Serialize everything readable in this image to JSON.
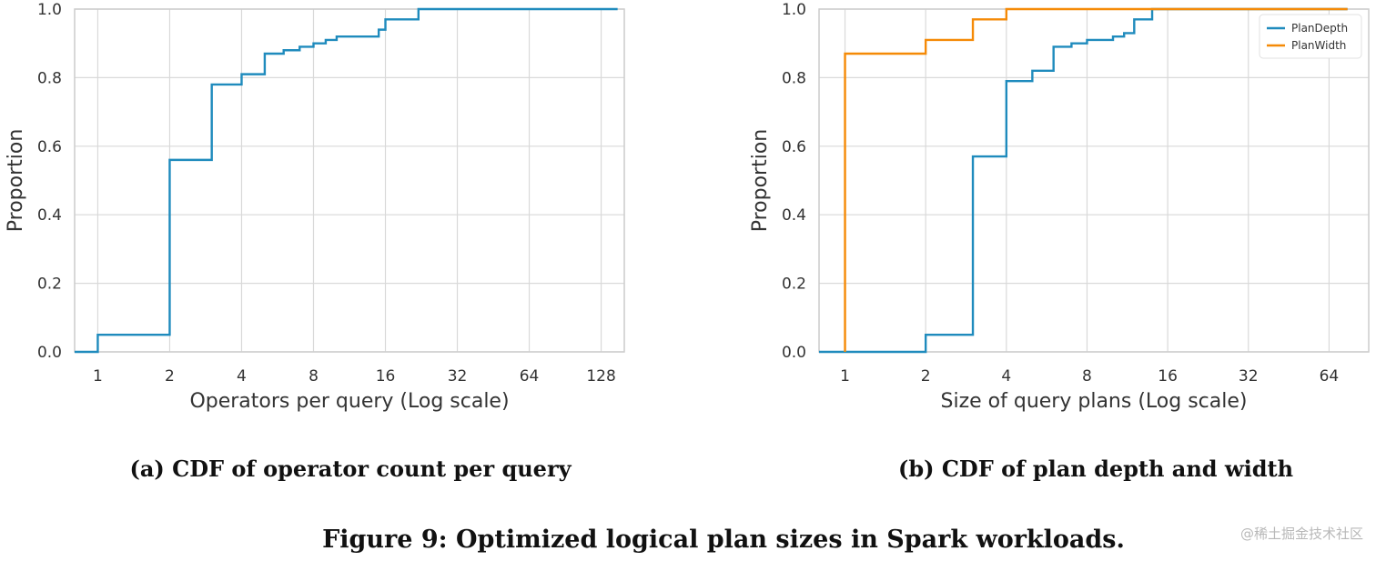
{
  "figure_caption": "Figure 9: Optimized logical plan sizes in Spark workloads.",
  "watermark": "@稀土掘金技术社区",
  "colors": {
    "blue": "#1f8bbd",
    "orange": "#f58a07",
    "grid": "#d9d9d9",
    "frame": "#cccccc",
    "text": "#333333"
  },
  "chart_data": [
    {
      "type": "line",
      "subtype": "ecdf-step",
      "caption": "(a) CDF of operator count per query",
      "title": "",
      "xlabel": "Operators per query (Log scale)",
      "ylabel": "Proportion",
      "xscale": "log2",
      "xlim": [
        0.8,
        160
      ],
      "ylim": [
        0,
        1
      ],
      "xticks": [
        1,
        2,
        4,
        8,
        16,
        32,
        64,
        128
      ],
      "xtick_labels": [
        "1",
        "2",
        "4",
        "8",
        "16",
        "32",
        "64",
        "128"
      ],
      "yticks": [
        0,
        0.2,
        0.4,
        0.6,
        0.8,
        1.0
      ],
      "ytick_labels": [
        "0.0",
        "0.2",
        "0.4",
        "0.6",
        "0.8",
        "1.0"
      ],
      "grid": true,
      "legend": null,
      "series": [
        {
          "name": "",
          "color": "#1f8bbd",
          "points": [
            [
              0.8,
              0
            ],
            [
              1,
              0.05
            ],
            [
              2,
              0.56
            ],
            [
              3,
              0.78
            ],
            [
              4,
              0.81
            ],
            [
              5,
              0.87
            ],
            [
              6,
              0.88
            ],
            [
              7,
              0.89
            ],
            [
              8,
              0.9
            ],
            [
              9,
              0.91
            ],
            [
              10,
              0.92
            ],
            [
              15,
              0.94
            ],
            [
              16,
              0.97
            ],
            [
              22,
              1.0
            ],
            [
              150,
              1.0
            ]
          ]
        }
      ]
    },
    {
      "type": "line",
      "subtype": "ecdf-step",
      "caption": "(b) CDF of plan depth and width",
      "title": "",
      "xlabel": "Size of query plans (Log scale)",
      "ylabel": "Proportion",
      "xscale": "log2",
      "xlim": [
        0.8,
        90
      ],
      "ylim": [
        0,
        1
      ],
      "xticks": [
        1,
        2,
        4,
        8,
        16,
        32,
        64
      ],
      "xtick_labels": [
        "1",
        "2",
        "4",
        "8",
        "16",
        "32",
        "64"
      ],
      "yticks": [
        0,
        0.2,
        0.4,
        0.6,
        0.8,
        1.0
      ],
      "ytick_labels": [
        "0.0",
        "0.2",
        "0.4",
        "0.6",
        "0.8",
        "1.0"
      ],
      "grid": true,
      "legend": "top-right",
      "series": [
        {
          "name": "PlanDepth",
          "color": "#1f8bbd",
          "points": [
            [
              0.8,
              0
            ],
            [
              2,
              0.05
            ],
            [
              3,
              0.57
            ],
            [
              4,
              0.79
            ],
            [
              5,
              0.82
            ],
            [
              6,
              0.89
            ],
            [
              7,
              0.9
            ],
            [
              8,
              0.91
            ],
            [
              10,
              0.92
            ],
            [
              11,
              0.93
            ],
            [
              12,
              0.97
            ],
            [
              14,
              1.0
            ],
            [
              75,
              1.0
            ]
          ]
        },
        {
          "name": "PlanWidth",
          "color": "#f58a07",
          "points": [
            [
              1,
              0
            ],
            [
              1,
              0.87
            ],
            [
              2,
              0.91
            ],
            [
              3,
              0.97
            ],
            [
              4,
              1.0
            ],
            [
              75,
              1.0
            ]
          ]
        }
      ]
    }
  ]
}
